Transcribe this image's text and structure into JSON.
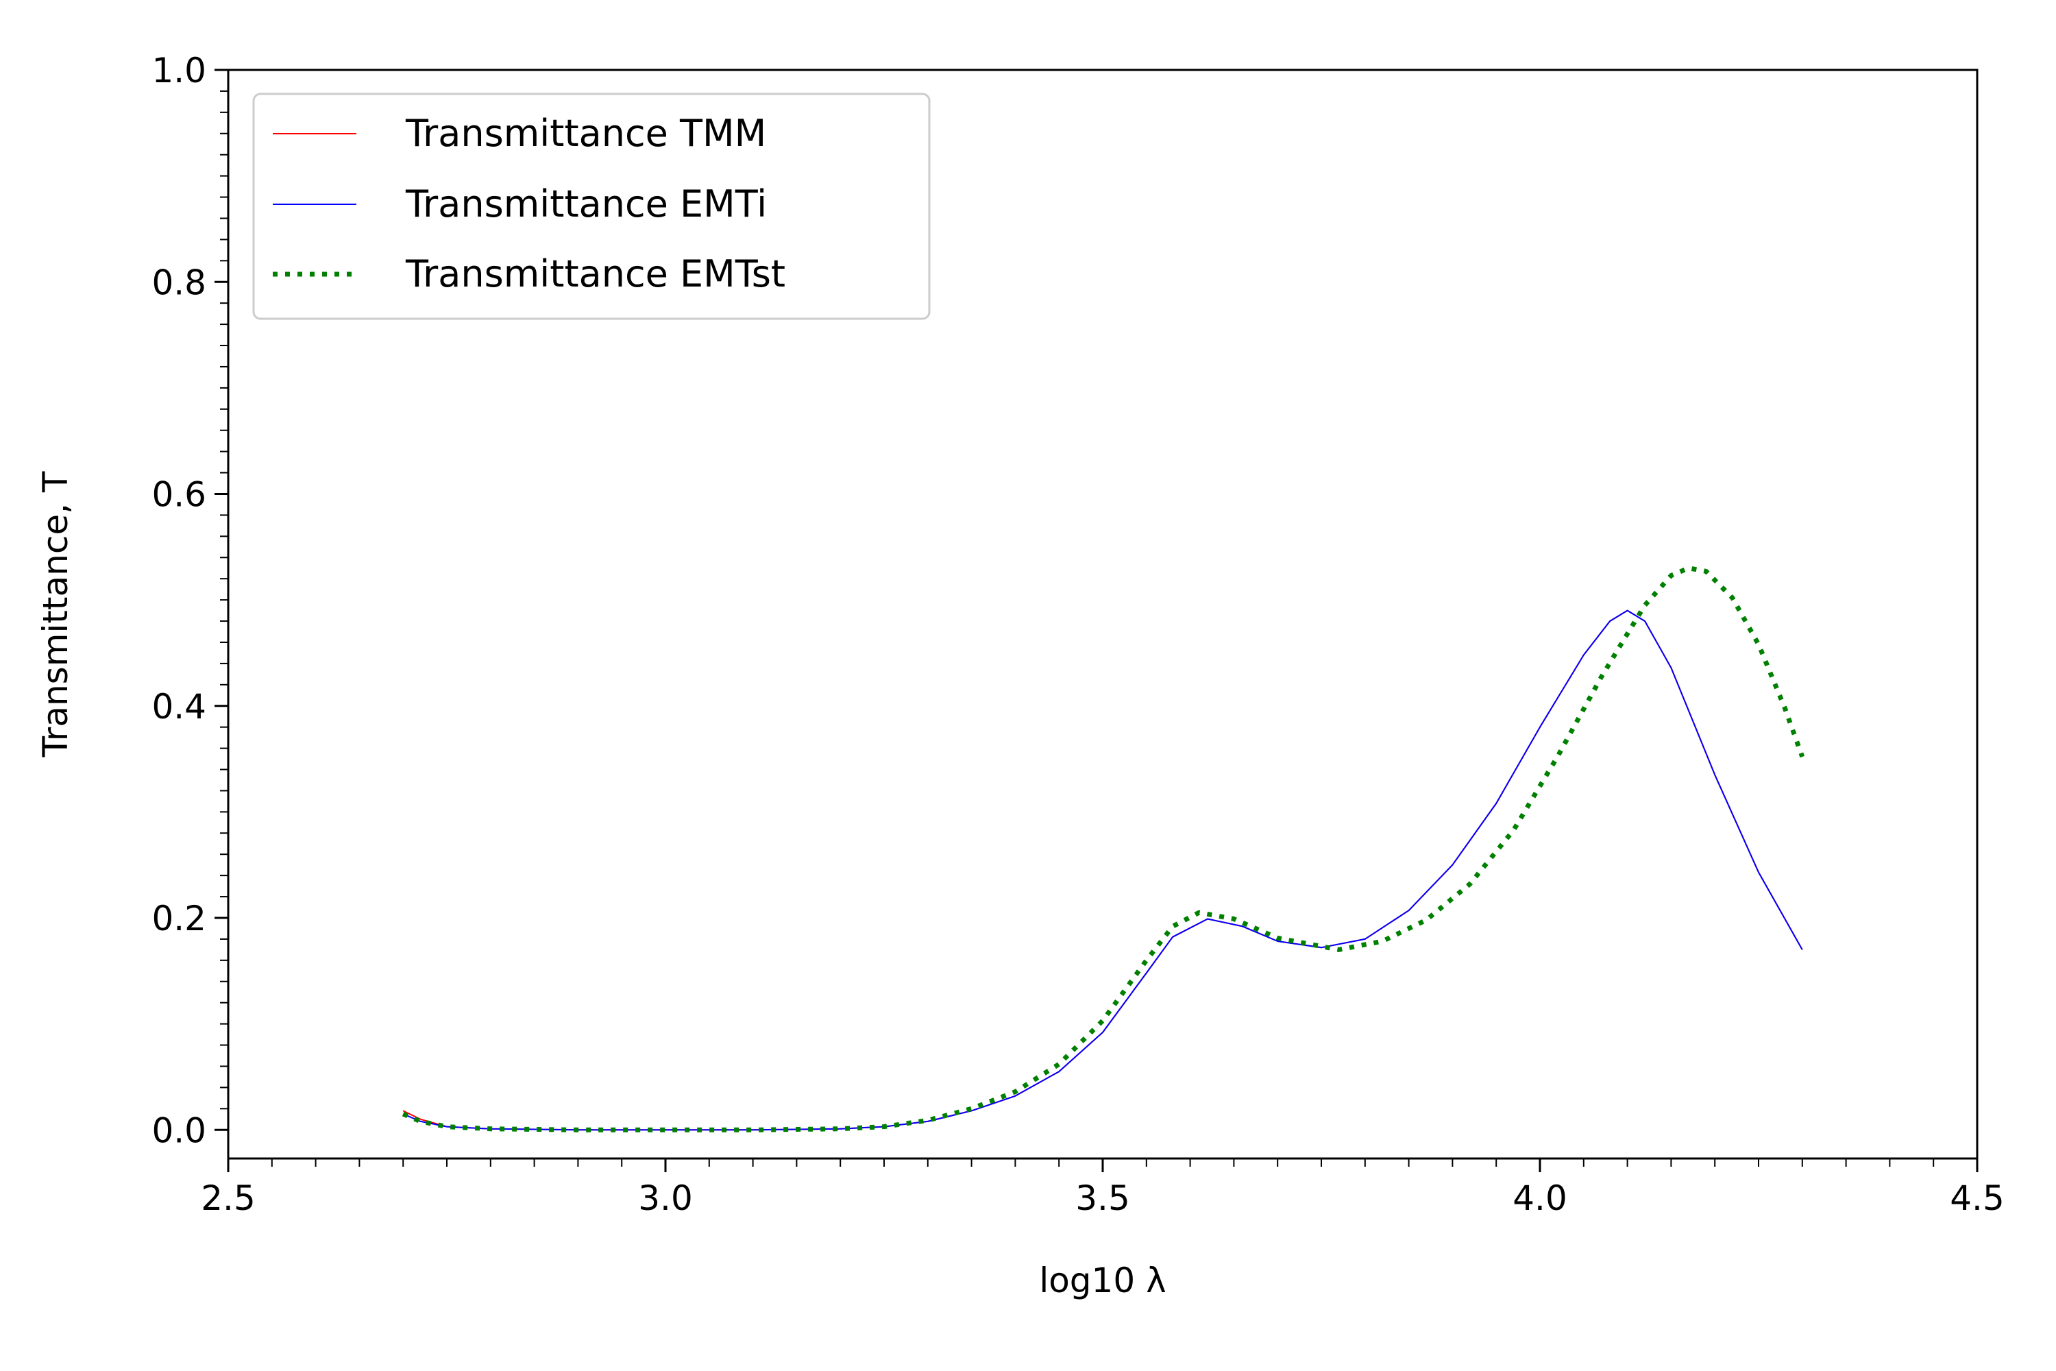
{
  "chart_data": {
    "type": "line",
    "title": "",
    "xlabel": "log10 λ",
    "ylabel": "Transmittance, T",
    "xlim": [
      2.5,
      4.5
    ],
    "ylim": [
      -0.027,
      1.0
    ],
    "xticks": [
      2.5,
      3.0,
      3.5,
      4.0,
      4.5
    ],
    "xtick_labels": [
      "2.5",
      "3.0",
      "3.5",
      "4.0",
      "4.5"
    ],
    "yticks": [
      0.0,
      0.2,
      0.4,
      0.6,
      0.8,
      1.0
    ],
    "ytick_labels": [
      "0.0",
      "0.2",
      "0.4",
      "0.6",
      "0.8",
      "1.0"
    ],
    "x_minor_step": 0.05,
    "y_minor_step": 0.02,
    "grid": false,
    "legend_position": "top-left",
    "series": [
      {
        "name": "Transmittance TMM",
        "color": "#ff0000",
        "style": "solid",
        "x": [
          2.7,
          2.72,
          2.75,
          2.8,
          2.9,
          3.0,
          3.1,
          3.2,
          3.25,
          3.3,
          3.35,
          3.4,
          3.45,
          3.5,
          3.55,
          3.58,
          3.62,
          3.66,
          3.7,
          3.75,
          3.8,
          3.85,
          3.9,
          3.95,
          4.0,
          4.05,
          4.08,
          4.1,
          4.12,
          4.15,
          4.2,
          4.25,
          4.3
        ],
        "y": [
          0.018,
          0.01,
          0.003,
          0.001,
          0.0,
          0.0,
          0.0,
          0.001,
          0.003,
          0.008,
          0.018,
          0.032,
          0.055,
          0.092,
          0.148,
          0.182,
          0.199,
          0.192,
          0.178,
          0.172,
          0.18,
          0.207,
          0.25,
          0.308,
          0.38,
          0.448,
          0.48,
          0.49,
          0.48,
          0.436,
          0.335,
          0.243,
          0.17
        ]
      },
      {
        "name": "Transmittance EMTi",
        "color": "#0000ff",
        "style": "solid",
        "x": [
          2.7,
          2.72,
          2.75,
          2.8,
          2.9,
          3.0,
          3.1,
          3.2,
          3.25,
          3.3,
          3.35,
          3.4,
          3.45,
          3.5,
          3.55,
          3.58,
          3.62,
          3.66,
          3.7,
          3.75,
          3.8,
          3.85,
          3.9,
          3.95,
          4.0,
          4.05,
          4.08,
          4.1,
          4.12,
          4.15,
          4.2,
          4.25,
          4.3
        ],
        "y": [
          0.015,
          0.008,
          0.003,
          0.001,
          0.0,
          0.0,
          0.0,
          0.001,
          0.003,
          0.008,
          0.018,
          0.032,
          0.055,
          0.092,
          0.148,
          0.182,
          0.199,
          0.192,
          0.178,
          0.172,
          0.18,
          0.207,
          0.25,
          0.308,
          0.38,
          0.448,
          0.48,
          0.49,
          0.48,
          0.436,
          0.335,
          0.243,
          0.17
        ]
      },
      {
        "name": "Transmittance EMTst",
        "color": "#008000",
        "style": "dotted",
        "x": [
          2.7,
          2.72,
          2.75,
          2.8,
          2.9,
          3.0,
          3.1,
          3.2,
          3.25,
          3.3,
          3.35,
          3.4,
          3.45,
          3.5,
          3.55,
          3.58,
          3.61,
          3.65,
          3.7,
          3.77,
          3.82,
          3.87,
          3.92,
          3.97,
          4.02,
          4.07,
          4.1,
          4.12,
          4.15,
          4.17,
          4.19,
          4.22,
          4.25,
          4.28,
          4.3
        ],
        "y": [
          0.015,
          0.008,
          0.003,
          0.001,
          0.0,
          0.0,
          0.0,
          0.001,
          0.003,
          0.009,
          0.02,
          0.036,
          0.062,
          0.103,
          0.16,
          0.192,
          0.205,
          0.199,
          0.181,
          0.17,
          0.178,
          0.198,
          0.232,
          0.283,
          0.352,
          0.427,
          0.468,
          0.495,
          0.523,
          0.53,
          0.527,
          0.502,
          0.458,
          0.398,
          0.352
        ]
      }
    ]
  }
}
